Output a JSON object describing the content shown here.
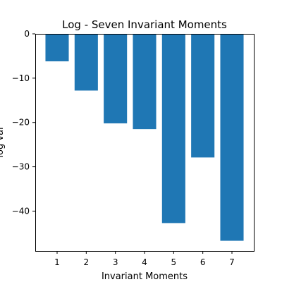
{
  "chart_data": {
    "type": "bar",
    "title": "Log - Seven Invariant Moments",
    "xlabel": "Invariant Moments",
    "ylabel": "log val",
    "categories": [
      "1",
      "2",
      "3",
      "4",
      "5",
      "6",
      "7"
    ],
    "values": [
      -6.2,
      -12.8,
      -20.2,
      -21.5,
      -42.7,
      -27.9,
      -46.7
    ],
    "ylim": [
      -49.0,
      0
    ],
    "yticks": [
      0,
      -10,
      -20,
      -30,
      -40
    ],
    "ytick_labels": [
      "0",
      "−10",
      "−20",
      "−30",
      "−40"
    ],
    "bar_color": "#1f77b4",
    "grid": false,
    "legend": "none"
  }
}
